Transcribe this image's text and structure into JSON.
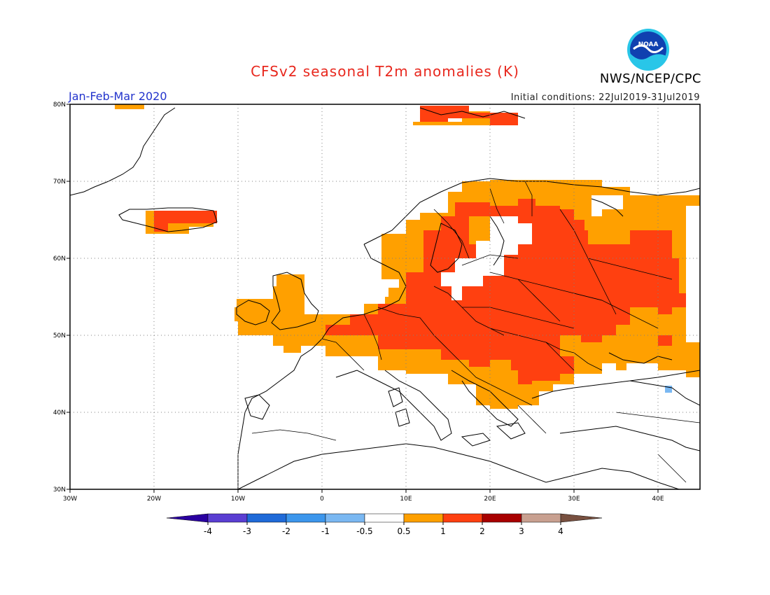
{
  "header": {
    "title": "CFSv2 seasonal T2m anomalies (K)",
    "period": "Jan-Feb-Mar 2020",
    "initial_conditions": "Initial conditions: 22Jul2019-31Jul2019",
    "agency": "NWS/NCEP/CPC",
    "logo_text": "NOAA"
  },
  "map": {
    "region": "Europe",
    "lon_range": [
      -30,
      45
    ],
    "lat_range": [
      30,
      80
    ],
    "lon_ticks": [
      {
        "lon": -30,
        "label": "30W"
      },
      {
        "lon": -20,
        "label": "20W"
      },
      {
        "lon": -10,
        "label": "10W"
      },
      {
        "lon": 0,
        "label": "0"
      },
      {
        "lon": 10,
        "label": "10E"
      },
      {
        "lon": 20,
        "label": "20E"
      },
      {
        "lon": 30,
        "label": "30E"
      },
      {
        "lon": 40,
        "label": "40E"
      }
    ],
    "lat_ticks": [
      {
        "lat": 30,
        "label": "30N"
      },
      {
        "lat": 40,
        "label": "40N"
      },
      {
        "lat": 50,
        "label": "50N"
      },
      {
        "lat": 60,
        "label": "60N"
      },
      {
        "lat": 70,
        "label": "70N"
      },
      {
        "lat": 80,
        "label": "80N"
      }
    ],
    "gridlines": "dotted"
  },
  "legend": {
    "labels": [
      "-4",
      "-3",
      "-2",
      "-1",
      "-0.5",
      "0.5",
      "1",
      "2",
      "3",
      "4"
    ],
    "colors": {
      "below_-4": "#2a00a0",
      "-4_-3": "#5a3ed2",
      "-3_-2": "#1f6ad8",
      "-2_-1": "#3c96ec",
      "-1_-0.5": "#7ab8f2",
      "-0.5_0.5": "#ffffff",
      "0.5_1": "#ffa000",
      "1_2": "#ff4010",
      "2_3": "#a80000",
      "3_4": "#c8a090",
      "above_4": "#785040"
    }
  }
}
